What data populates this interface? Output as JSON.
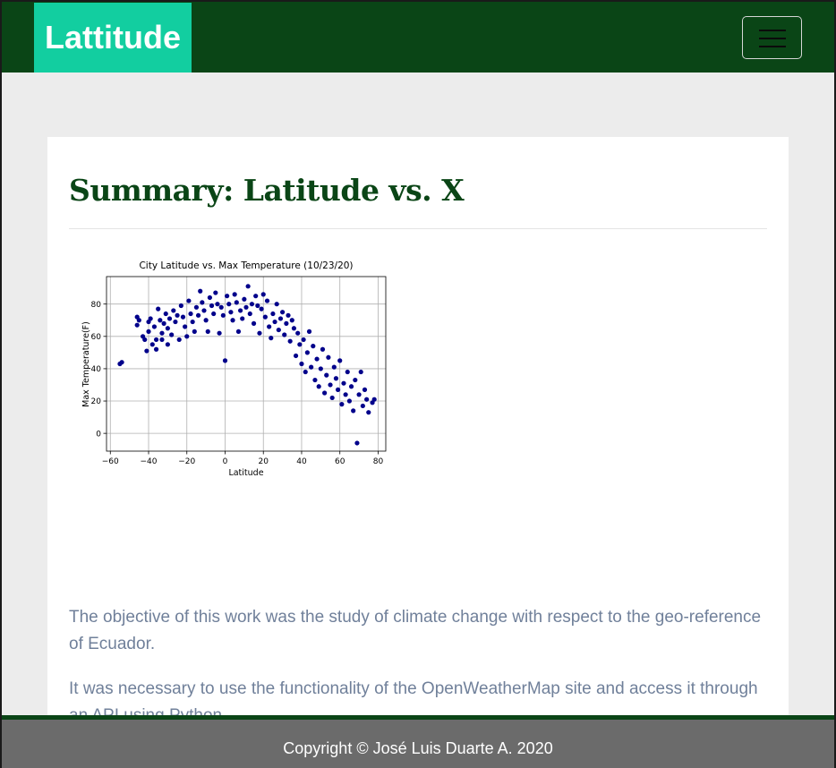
{
  "navbar": {
    "brand": "Lattitude",
    "toggle_icon": "hamburger-icon"
  },
  "main": {
    "heading": "Summary: Latitude vs. X",
    "paragraphs": [
      "The objective of this work was the study of climate change with respect to the geo-reference of Ecuador.",
      "It was necessary to use the functionality of the OpenWeatherMap site and access it through an API using Python."
    ]
  },
  "footer": {
    "text": "Copyright © José Luis Duarte A. 2020"
  },
  "colors": {
    "nav": "#0a4516",
    "brand": "#12cea0",
    "point": "#00008b",
    "text": "#70809a"
  },
  "chart_data": {
    "type": "scatter",
    "title": "City Latitude vs. Max Temperature (10/23/20)",
    "xlabel": "Latitude",
    "ylabel": "Max Temperature(F)",
    "xlim": [
      -62,
      84
    ],
    "ylim": [
      -11,
      97
    ],
    "xticks": [
      -60,
      -40,
      -20,
      0,
      20,
      40,
      60,
      80
    ],
    "yticks": [
      0,
      20,
      40,
      60,
      80
    ],
    "grid": true,
    "points": [
      [
        -55,
        43
      ],
      [
        -54,
        44
      ],
      [
        -46,
        72
      ],
      [
        -46,
        67
      ],
      [
        -45,
        70
      ],
      [
        -43,
        60
      ],
      [
        -42,
        58
      ],
      [
        -41,
        51
      ],
      [
        -40,
        69
      ],
      [
        -40,
        63
      ],
      [
        -39,
        71
      ],
      [
        -38,
        55
      ],
      [
        -37,
        66
      ],
      [
        -36,
        58
      ],
      [
        -36,
        52
      ],
      [
        -35,
        77
      ],
      [
        -34,
        70
      ],
      [
        -33,
        62
      ],
      [
        -33,
        58
      ],
      [
        -32,
        68
      ],
      [
        -31,
        74
      ],
      [
        -30,
        65
      ],
      [
        -30,
        55
      ],
      [
        -29,
        71
      ],
      [
        -28,
        61
      ],
      [
        -27,
        76
      ],
      [
        -26,
        69
      ],
      [
        -25,
        73
      ],
      [
        -24,
        58
      ],
      [
        -23,
        79
      ],
      [
        -22,
        72
      ],
      [
        -21,
        66
      ],
      [
        -20,
        60
      ],
      [
        -19,
        82
      ],
      [
        -18,
        74
      ],
      [
        -17,
        69
      ],
      [
        -16,
        63
      ],
      [
        -15,
        78
      ],
      [
        -14,
        73
      ],
      [
        -13,
        88
      ],
      [
        -12,
        81
      ],
      [
        -11,
        76
      ],
      [
        -10,
        70
      ],
      [
        -9,
        63
      ],
      [
        -8,
        84
      ],
      [
        -7,
        79
      ],
      [
        -6,
        74
      ],
      [
        -5,
        87
      ],
      [
        -4,
        80
      ],
      [
        -3,
        62
      ],
      [
        -2,
        78
      ],
      [
        -1,
        73
      ],
      [
        0,
        45
      ],
      [
        1,
        85
      ],
      [
        2,
        80
      ],
      [
        3,
        75
      ],
      [
        4,
        70
      ],
      [
        5,
        86
      ],
      [
        6,
        81
      ],
      [
        7,
        63
      ],
      [
        8,
        76
      ],
      [
        9,
        71
      ],
      [
        10,
        83
      ],
      [
        11,
        78
      ],
      [
        12,
        91
      ],
      [
        13,
        74
      ],
      [
        14,
        80
      ],
      [
        15,
        68
      ],
      [
        16,
        85
      ],
      [
        17,
        79
      ],
      [
        18,
        62
      ],
      [
        19,
        77
      ],
      [
        20,
        86
      ],
      [
        21,
        72
      ],
      [
        22,
        82
      ],
      [
        23,
        66
      ],
      [
        24,
        59
      ],
      [
        25,
        74
      ],
      [
        26,
        69
      ],
      [
        27,
        80
      ],
      [
        28,
        64
      ],
      [
        29,
        71
      ],
      [
        30,
        75
      ],
      [
        31,
        61
      ],
      [
        32,
        68
      ],
      [
        33,
        73
      ],
      [
        34,
        57
      ],
      [
        35,
        70
      ],
      [
        36,
        65
      ],
      [
        37,
        48
      ],
      [
        38,
        62
      ],
      [
        39,
        55
      ],
      [
        40,
        43
      ],
      [
        41,
        58
      ],
      [
        42,
        38
      ],
      [
        43,
        50
      ],
      [
        44,
        63
      ],
      [
        45,
        41
      ],
      [
        46,
        54
      ],
      [
        47,
        33
      ],
      [
        48,
        46
      ],
      [
        49,
        29
      ],
      [
        50,
        40
      ],
      [
        51,
        52
      ],
      [
        52,
        25
      ],
      [
        53,
        36
      ],
      [
        54,
        47
      ],
      [
        55,
        30
      ],
      [
        56,
        22
      ],
      [
        57,
        41
      ],
      [
        58,
        34
      ],
      [
        59,
        27
      ],
      [
        60,
        45
      ],
      [
        61,
        18
      ],
      [
        62,
        31
      ],
      [
        63,
        24
      ],
      [
        64,
        38
      ],
      [
        65,
        20
      ],
      [
        66,
        29
      ],
      [
        67,
        14
      ],
      [
        68,
        33
      ],
      [
        69,
        -6
      ],
      [
        70,
        24
      ],
      [
        71,
        38
      ],
      [
        72,
        17
      ],
      [
        73,
        27
      ],
      [
        74,
        21
      ],
      [
        75,
        13
      ],
      [
        77,
        19
      ],
      [
        78,
        21
      ]
    ]
  }
}
